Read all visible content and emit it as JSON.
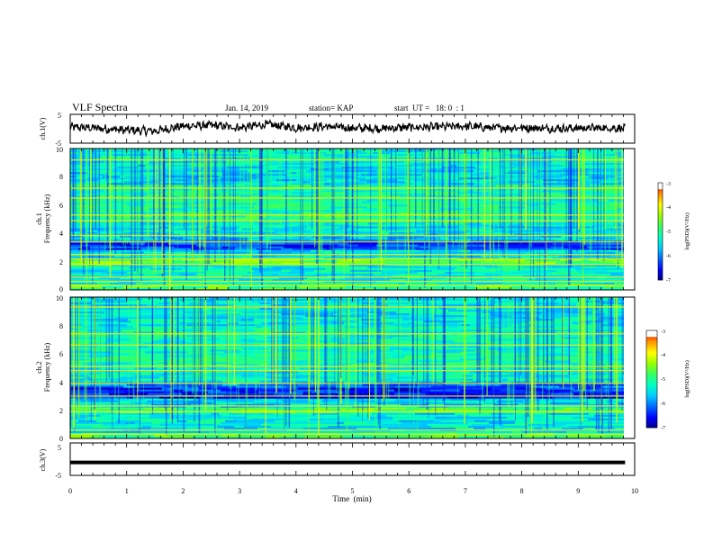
{
  "header": {
    "title": "VLF Spectra",
    "date": "Jan. 14, 2019",
    "station": "station= KAP",
    "start": "start  UT =   18: 0  : 1"
  },
  "colors": {
    "ink": "#000000",
    "colormap": [
      "#00007f",
      "#0000ff",
      "#0064ff",
      "#00c8ff",
      "#00ffc8",
      "#32ff64",
      "#96ff00",
      "#ffff00",
      "#ff9600",
      "#ff0000",
      "#ffffff"
    ]
  },
  "chart_data": [
    {
      "type": "line",
      "panel": "ch1-waveform",
      "ylabel": "ch.1(V)",
      "ylim": [
        -5,
        5
      ],
      "yticks": [
        "5",
        "-5"
      ],
      "xlim": [
        0,
        10
      ],
      "x_end_data": 9.83,
      "series": [
        {
          "values": "noisy broadband waveform centred near 0 V"
        }
      ],
      "x": [
        0,
        0.5,
        1,
        1.5,
        2,
        2.5,
        3,
        3.5,
        4,
        4.5,
        5,
        5.5,
        6,
        6.5,
        7,
        7.5,
        8,
        8.5,
        9,
        9.5,
        9.83
      ],
      "y": [
        0.6,
        0.2,
        -0.5,
        -0.8,
        0.9,
        1.2,
        0.4,
        1.5,
        0.3,
        0.8,
        0.2,
        0.1,
        0.5,
        0.6,
        0.9,
        0.3,
        0.4,
        0.1,
        0.2,
        0.3,
        0.1
      ]
    },
    {
      "type": "heatmap",
      "panel": "ch1-spectrogram",
      "ylabel": "ch.1\nFrequency (kHz)",
      "ylim": [
        0,
        10
      ],
      "yticks": [
        "0",
        "2",
        "4",
        "6",
        "8",
        "10"
      ],
      "xlim": [
        0,
        10
      ],
      "colorbar": {
        "label": "log(PSD)(V²/Hz)",
        "range": [
          -7,
          -3
        ],
        "ticks": [
          "-3",
          "-4",
          "-5",
          "-6",
          "-7"
        ]
      },
      "bands_khz": [
        {
          "range": [
            0.0,
            0.4
          ],
          "level": -4.8
        },
        {
          "range": [
            0.4,
            1.8
          ],
          "level": -5.3
        },
        {
          "range": [
            1.8,
            2.2
          ],
          "level": -4.6
        },
        {
          "range": [
            2.2,
            2.8
          ],
          "level": -5.4
        },
        {
          "range": [
            2.8,
            3.4
          ],
          "level": -6.3
        },
        {
          "range": [
            3.4,
            3.8
          ],
          "level": -5.6
        },
        {
          "range": [
            3.8,
            4.8
          ],
          "level": -5.4
        },
        {
          "range": [
            4.8,
            5.5
          ],
          "level": -5.0
        },
        {
          "range": [
            5.5,
            7.5
          ],
          "level": -5.1
        },
        {
          "range": [
            7.5,
            8.8
          ],
          "level": -5.5
        },
        {
          "range": [
            8.8,
            10.0
          ],
          "level": -5.3
        }
      ],
      "lines_khz": [
        0.3,
        0.6,
        0.9,
        1.8,
        2.2,
        2.5,
        3.4,
        3.85,
        4.9,
        5.3,
        6.5,
        7.2,
        9.2
      ]
    },
    {
      "type": "heatmap",
      "panel": "ch2-spectrogram",
      "ylabel": "ch.2\nFrequency (kHz)",
      "ylim": [
        0,
        10
      ],
      "yticks": [
        "0",
        "2",
        "4",
        "6",
        "8",
        "10"
      ],
      "xlim": [
        0,
        10
      ],
      "colorbar": {
        "label": "log(PSD)(V²/Hz)",
        "range": [
          -7,
          -3
        ],
        "ticks": [
          "-3",
          "-4",
          "-5",
          "-6",
          "-7"
        ]
      },
      "bands_khz": [
        {
          "range": [
            0.0,
            0.4
          ],
          "level": -4.8
        },
        {
          "range": [
            0.4,
            1.8
          ],
          "level": -5.4
        },
        {
          "range": [
            1.8,
            2.2
          ],
          "level": -4.7
        },
        {
          "range": [
            2.2,
            2.8
          ],
          "level": -5.5
        },
        {
          "range": [
            2.8,
            3.6
          ],
          "level": -6.4
        },
        {
          "range": [
            3.6,
            4.0
          ],
          "level": -6.0
        },
        {
          "range": [
            4.0,
            5.0
          ],
          "level": -5.3
        },
        {
          "range": [
            5.0,
            6.0
          ],
          "level": -5.1
        },
        {
          "range": [
            6.0,
            8.0
          ],
          "level": -5.2
        },
        {
          "range": [
            8.0,
            10.0
          ],
          "level": -5.4
        }
      ],
      "lines_khz": [
        0.3,
        0.6,
        1.9,
        2.3,
        3.0,
        3.9,
        4.8,
        5.1,
        6.6,
        7.4,
        9.3
      ]
    },
    {
      "type": "line",
      "panel": "ch3-waveform",
      "ylabel": "ch.3(V)",
      "ylim": [
        -5,
        5
      ],
      "yticks": [
        "5",
        "-5"
      ],
      "xlim": [
        0,
        10
      ],
      "x_end_data": 9.83,
      "series": [
        {
          "values": "flat trace"
        }
      ],
      "x": [
        0,
        9.83
      ],
      "y": [
        -1,
        -1
      ],
      "xlabel": "Time  (min)",
      "xticks": [
        "0",
        "1",
        "2",
        "3",
        "4",
        "5",
        "6",
        "7",
        "8",
        "9",
        "10"
      ]
    }
  ]
}
